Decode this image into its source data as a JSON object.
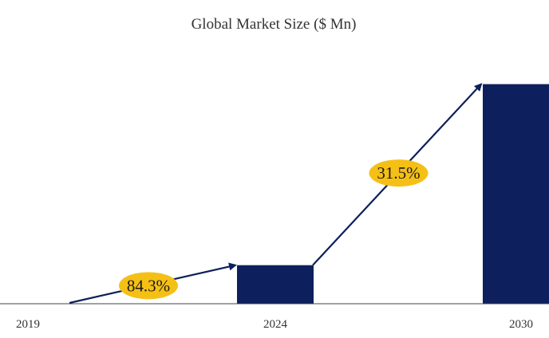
{
  "chart_data": {
    "type": "bar",
    "title": "Global Market Size ($ Mn)",
    "xlabel": "",
    "ylabel": "",
    "categories": [
      "2019",
      "2024",
      "2030"
    ],
    "values": [
      0.1,
      12.2,
      69.5
    ],
    "ylim": [
      0,
      82
    ],
    "grid": false,
    "legend": "none",
    "annotations": [
      {
        "label": "84.3%",
        "from": "2019",
        "to": "2024"
      },
      {
        "label": "31.5%",
        "from": "2024",
        "to": "2030"
      }
    ],
    "colors": {
      "bar": "#0d1f5c",
      "arrow": "#0d1f5c",
      "badge": "#f5c016",
      "axis": "#444444"
    }
  }
}
